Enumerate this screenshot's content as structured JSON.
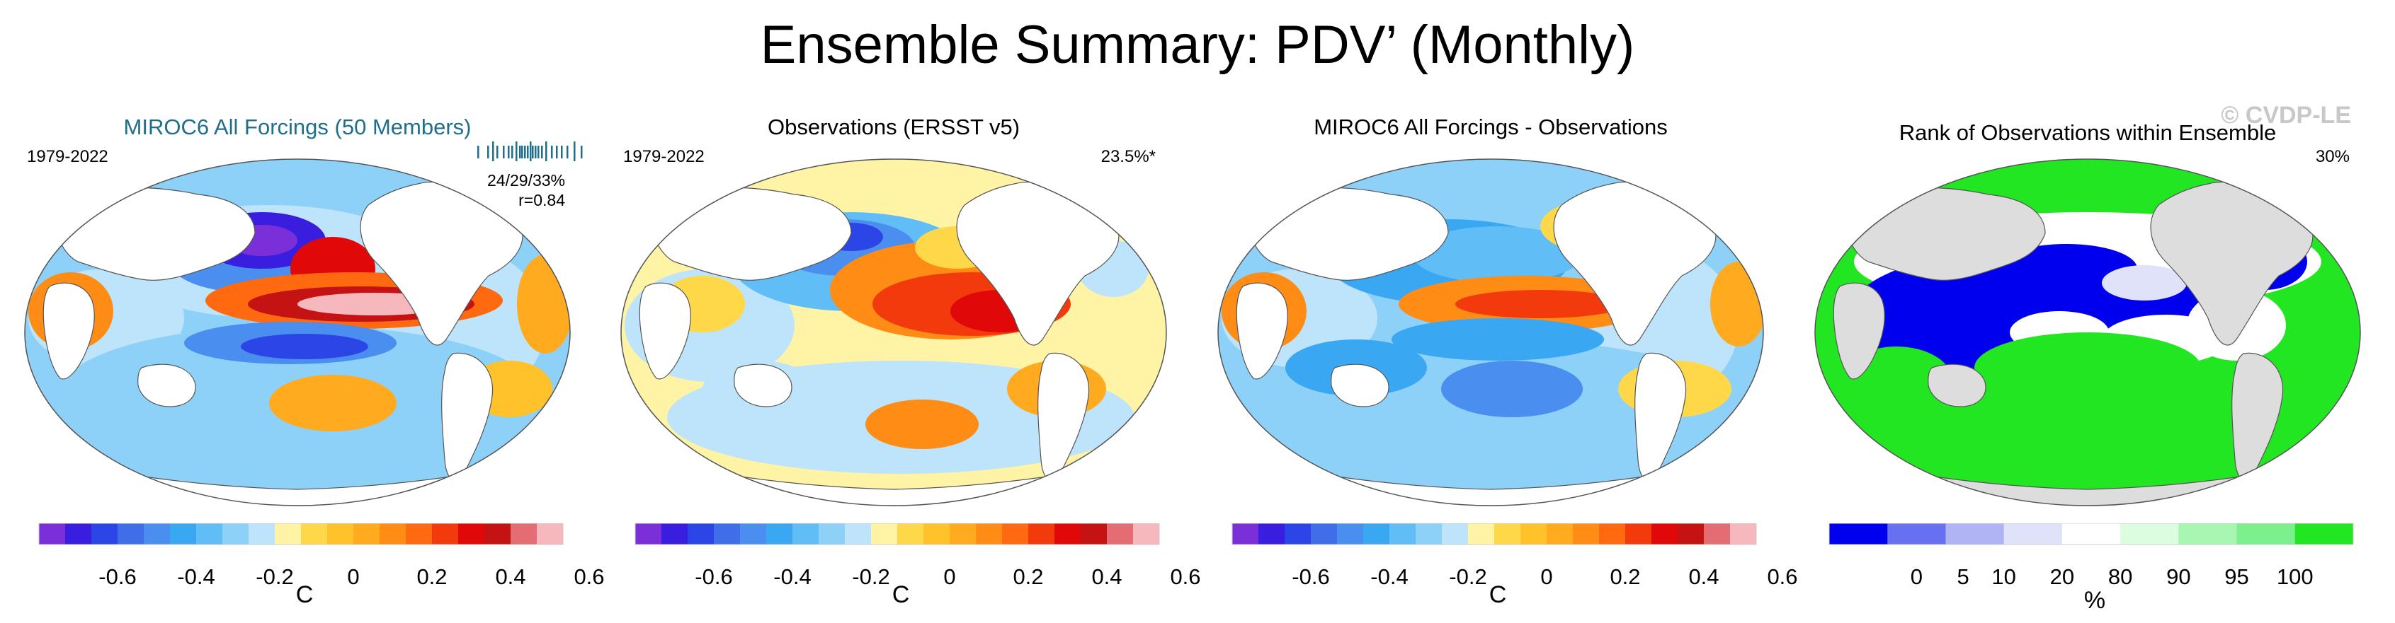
{
  "title": "Ensemble Summary: PDV’ (Monthly)",
  "watermark": "© CVDP-LE",
  "colors": {
    "diverging": [
      "#7b2fd8",
      "#3a1ee0",
      "#2b45e6",
      "#3f6ee8",
      "#4a8ff0",
      "#39a7f2",
      "#61bdf6",
      "#8ed1f8",
      "#bde4fa",
      "#fff3a6",
      "#ffd84a",
      "#ffc22a",
      "#ffaa1f",
      "#ff8c14",
      "#ff6a10",
      "#f23a0c",
      "#e1080a",
      "#c51212",
      "#e36d73",
      "#f6b7bd"
    ],
    "rank": [
      "#0000ee",
      "#6670f0",
      "#b0b4f4",
      "#e0e2fa",
      "#ffffff",
      "#dcfde0",
      "#a7f7b2",
      "#7cf08c",
      "#22e622"
    ],
    "land": "#ffffff",
    "rank_land": "#dddddd"
  },
  "panels": [
    {
      "title": "MIROC6 All Forcings (50 Members)",
      "period": "1979-2022",
      "stats": [
        "24/29/33%",
        "r=0.84"
      ],
      "pattern": "model",
      "colorbar": {
        "type": "diverging",
        "labels": [
          "-0.6",
          "-0.4",
          "-0.2",
          "0",
          "0.2",
          "0.4",
          "0.6"
        ],
        "unit": "C"
      }
    },
    {
      "title": "Observations (ERSST v5)",
      "period": "1979-2022",
      "stats": [
        "23.5%*"
      ],
      "pattern": "obs",
      "colorbar": {
        "type": "diverging",
        "labels": [
          "-0.6",
          "-0.4",
          "-0.2",
          "0",
          "0.2",
          "0.4",
          "0.6"
        ],
        "unit": "C"
      }
    },
    {
      "title": "MIROC6 All Forcings - Observations",
      "period": "",
      "stats": [],
      "pattern": "diff",
      "colorbar": {
        "type": "diverging",
        "labels": [
          "-0.6",
          "-0.4",
          "-0.2",
          "0",
          "0.2",
          "0.4",
          "0.6"
        ],
        "unit": "C"
      }
    },
    {
      "title": "Rank of Observations within Ensemble",
      "period": "",
      "stats": [
        "30%"
      ],
      "pattern": "rank",
      "colorbar": {
        "type": "rank",
        "labels": [
          "0",
          "5",
          "10",
          "20",
          "80",
          "90",
          "95",
          "100"
        ],
        "unit": "%"
      }
    }
  ]
}
